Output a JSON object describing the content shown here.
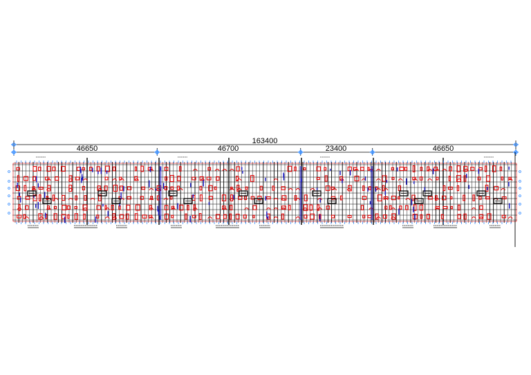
{
  "drawing": {
    "overall_dimension": "163400",
    "segment_dimensions": [
      "46650",
      "46700",
      "23400",
      "46650"
    ],
    "segment_split_x": [
      0,
      46650,
      93350,
      116750,
      163400
    ],
    "colors": {
      "background": "#ffffff",
      "grid": "#000000",
      "columns": "#e00000",
      "walls": "#1010c0",
      "dimension_markers": "#2080ff"
    }
  }
}
